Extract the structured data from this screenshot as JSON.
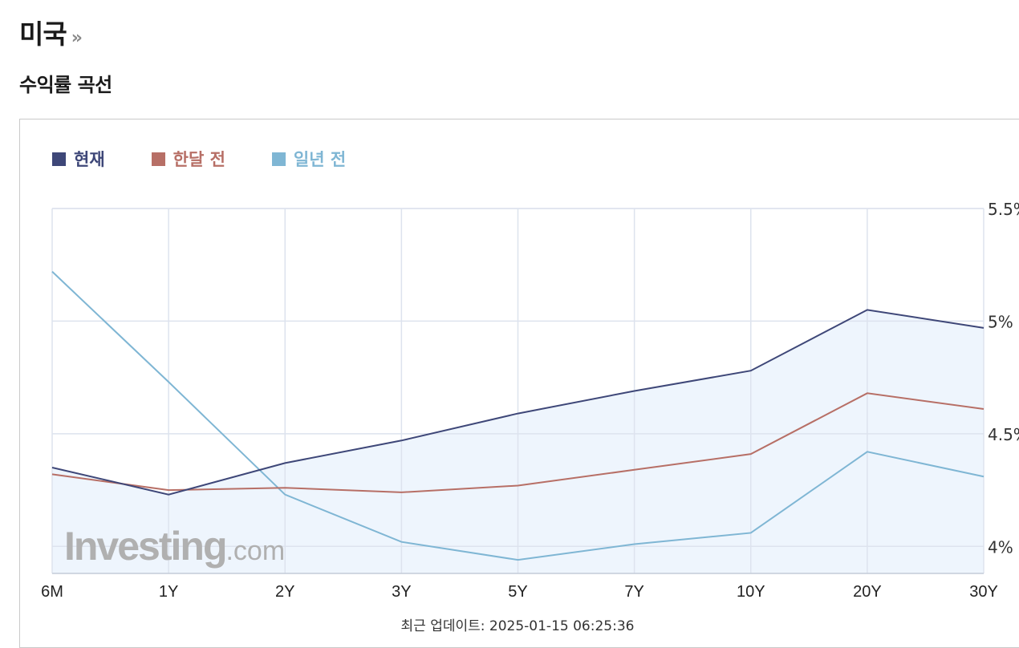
{
  "header": {
    "title": "미국",
    "chevron": "»"
  },
  "section": {
    "title": "수익률 곡선"
  },
  "footer": {
    "label": "최근 업데이트:",
    "timestamp": "2025-01-15 06:25:36"
  },
  "watermark": {
    "brand": "Investing",
    "suffix": ".com"
  },
  "colors": {
    "current": "#3e4778",
    "month_ago": "#b76f66",
    "year_ago": "#7fb6d4",
    "fill": "#eef5fd",
    "grid": "#dde3ee"
  },
  "chart_data": {
    "type": "line",
    "categories": [
      "6M",
      "1Y",
      "2Y",
      "3Y",
      "5Y",
      "7Y",
      "10Y",
      "20Y",
      "30Y"
    ],
    "series": [
      {
        "name": "현재",
        "values": [
          4.35,
          4.23,
          4.37,
          4.47,
          4.59,
          4.69,
          4.78,
          5.05,
          4.97
        ]
      },
      {
        "name": "한달 전",
        "values": [
          4.32,
          4.25,
          4.26,
          4.24,
          4.27,
          4.34,
          4.41,
          4.68,
          4.61
        ]
      },
      {
        "name": "일년 전",
        "values": [
          5.22,
          4.73,
          4.23,
          4.02,
          3.94,
          4.01,
          4.06,
          4.42,
          4.31
        ]
      }
    ],
    "yticks": [
      "4%",
      "4.5%",
      "5%",
      "5.5%"
    ],
    "ylim": [
      3.88,
      5.5
    ],
    "grid": true,
    "legend_position": "top-left",
    "y_axis_side": "right"
  }
}
